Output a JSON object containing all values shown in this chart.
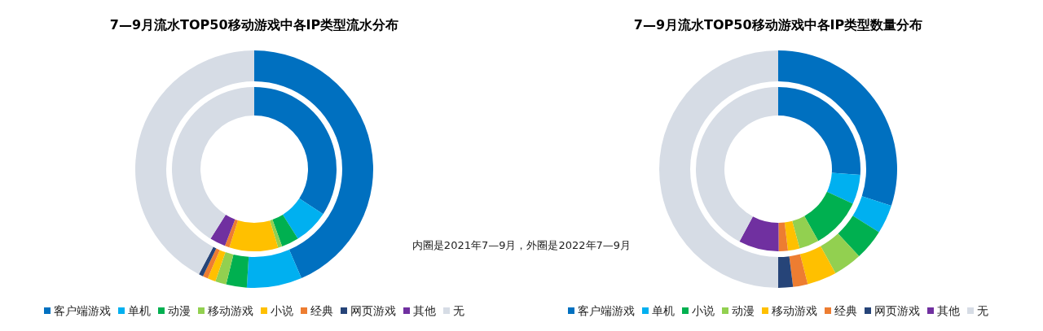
{
  "chart_data": [
    {
      "type": "donut",
      "title": "7—9月流水TOP50移动游戏中各IP类型流水分布",
      "categories": [
        "客户端游戏",
        "单机",
        "动漫",
        "移动游戏",
        "小说",
        "经典",
        "网页游戏",
        "其他",
        "无"
      ],
      "colors": [
        "#0070c0",
        "#00b0f0",
        "#00b050",
        "#92d050",
        "#ffc000",
        "#ed7d31",
        "#264478",
        "#7030a0",
        "#d6dce5"
      ],
      "series": [
        {
          "values": [
            34.2,
            6.9,
            3.4,
            0.8,
            9.6,
            0.9,
            0,
            3.1,
            41.1
          ]
        },
        {
          "values": [
            43.5,
            7.5,
            2.8,
            1.5,
            1.1,
            0.7,
            0.6,
            0,
            42.3
          ]
        }
      ],
      "legend": "bottom",
      "annotations": [
        "内圈是2021年7—9月，外圈是2022年7—9月"
      ]
    },
    {
      "type": "donut",
      "title": "7—9月流水TOP50移动游戏中各IP类型数量分布",
      "categories": [
        "客户端游戏",
        "单机",
        "小说",
        "动漫",
        "移动游戏",
        "经典",
        "网页游戏",
        "其他",
        "无"
      ],
      "colors": [
        "#0070c0",
        "#00b0f0",
        "#00b050",
        "#92d050",
        "#ffc000",
        "#ed7d31",
        "#264478",
        "#7030a0",
        "#d6dce5"
      ],
      "series": [
        {
          "values": [
            26.1,
            5.8,
            10,
            3.9,
            2.3,
            1.8,
            0,
            7.9,
            42.2
          ]
        },
        {
          "values": [
            30,
            3.9,
            4.2,
            3.9,
            4,
            2,
            2,
            0,
            50
          ]
        }
      ],
      "legend": "bottom"
    }
  ]
}
